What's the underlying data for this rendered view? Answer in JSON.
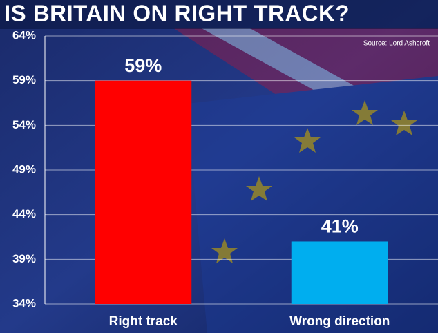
{
  "chart_data": {
    "type": "bar",
    "title": "IS BRITAIN ON RIGHT TRACK?",
    "source": "Source: Lord Ashcroft",
    "categories": [
      "Right track",
      "Wrong direction"
    ],
    "values": [
      59,
      41
    ],
    "value_labels": [
      "59%",
      "41%"
    ],
    "colors": [
      "#ff0000",
      "#00aeef"
    ],
    "ylim": [
      34,
      64
    ],
    "yticks": [
      {
        "value": 34,
        "label": "34%"
      },
      {
        "value": 39,
        "label": "39%"
      },
      {
        "value": 44,
        "label": "44%"
      },
      {
        "value": 49,
        "label": "49%"
      },
      {
        "value": 54,
        "label": "54%"
      },
      {
        "value": 59,
        "label": "59%"
      },
      {
        "value": 64,
        "label": "64%"
      }
    ],
    "grid": true
  }
}
